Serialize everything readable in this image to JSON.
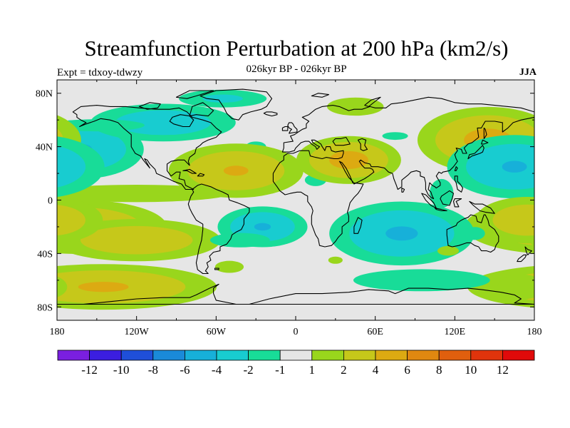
{
  "title": "Streamfunction Perturbation at 200 hPa (km2/s)",
  "subtitle": "026kyr BP - 026kyr BP",
  "left_label": "Expt = tdxoy-tdwzy",
  "right_label": "JJA",
  "lat_ticks": [
    {
      "label": "80N",
      "lat": 80
    },
    {
      "label": "40N",
      "lat": 40
    },
    {
      "label": "0",
      "lat": 0
    },
    {
      "label": "40S",
      "lat": -40
    },
    {
      "label": "80S",
      "lat": -80
    }
  ],
  "lon_ticks": [
    {
      "label": "180",
      "lon": -180
    },
    {
      "label": "120W",
      "lon": -120
    },
    {
      "label": "60W",
      "lon": -60
    },
    {
      "label": "0",
      "lon": 0
    },
    {
      "label": "60E",
      "lon": 60
    },
    {
      "label": "120E",
      "lon": 120
    },
    {
      "label": "180",
      "lon": 180
    }
  ],
  "colorbar": {
    "colors": [
      "#7a1fe0",
      "#3b1ee0",
      "#1f4fd9",
      "#1a8ad9",
      "#17b0d9",
      "#18ccd0",
      "#18dc98",
      "#e6e6e6",
      "#99d61c",
      "#c6c81a",
      "#dcaa12",
      "#e08810",
      "#e05f0e",
      "#e0340c",
      "#e00a0a"
    ],
    "labels": [
      "-12",
      "-10",
      "-8",
      "-6",
      "-4",
      "-2",
      "-1",
      "1",
      "2",
      "4",
      "6",
      "8",
      "10",
      "12"
    ]
  },
  "map": {
    "background_color": "#e6e6e6",
    "levels": [
      -1,
      -2,
      -4,
      1,
      2,
      4
    ],
    "anomalies": [
      {
        "lon": -162,
        "lat": 38,
        "amp": -4.2,
        "sx": 28,
        "sy": 13
      },
      {
        "lon": -100,
        "lat": 58,
        "amp": -3.4,
        "sx": 35,
        "sy": 9
      },
      {
        "lon": -55,
        "lat": 76,
        "amp": -2.4,
        "sx": 25,
        "sy": 5
      },
      {
        "lon": -150,
        "lat": 56,
        "amp": -1.5,
        "sx": 40,
        "sy": 5
      },
      {
        "lon": -75,
        "lat": 20,
        "amp": -1.6,
        "sx": 10,
        "sy": 6
      },
      {
        "lon": -30,
        "lat": 40,
        "amp": -1.6,
        "sx": 8,
        "sy": 4
      },
      {
        "lon": -45,
        "lat": 22,
        "amp": 4.2,
        "sx": 30,
        "sy": 12
      },
      {
        "lon": -120,
        "lat": 5,
        "amp": 1.8,
        "sx": 65,
        "sy": 6
      },
      {
        "lon": -165,
        "lat": -20,
        "amp": 4.2,
        "sx": 40,
        "sy": 12
      },
      {
        "lon": -120,
        "lat": -30,
        "amp": 3.5,
        "sx": 40,
        "sy": 10
      },
      {
        "lon": -145,
        "lat": -65,
        "amp": 4.3,
        "sx": 50,
        "sy": 10
      },
      {
        "lon": -25,
        "lat": -20,
        "amp": -4.2,
        "sx": 20,
        "sy": 9
      },
      {
        "lon": -42,
        "lat": -30,
        "amp": -1.5,
        "sx": 25,
        "sy": 6
      },
      {
        "lon": -50,
        "lat": -50,
        "amp": 1.5,
        "sx": 12,
        "sy": 5
      },
      {
        "lon": 15,
        "lat": 15,
        "amp": -1.5,
        "sx": 9,
        "sy": 5
      },
      {
        "lon": 40,
        "lat": 30,
        "amp": 5.0,
        "sx": 22,
        "sy": 10
      },
      {
        "lon": 45,
        "lat": 70,
        "amp": 1.6,
        "sx": 22,
        "sy": 7
      },
      {
        "lon": 75,
        "lat": 48,
        "amp": -1.6,
        "sx": 10,
        "sy": 3
      },
      {
        "lon": 80,
        "lat": -25,
        "amp": -4.3,
        "sx": 32,
        "sy": 14
      },
      {
        "lon": 95,
        "lat": -60,
        "amp": -1.7,
        "sx": 50,
        "sy": 8
      },
      {
        "lon": 110,
        "lat": 5,
        "amp": -1.5,
        "sx": 10,
        "sy": 12
      },
      {
        "lon": 145,
        "lat": 45,
        "amp": 4.8,
        "sx": 30,
        "sy": 14
      },
      {
        "lon": 165,
        "lat": 25,
        "amp": -4.2,
        "sx": 30,
        "sy": 14
      },
      {
        "lon": 175,
        "lat": -15,
        "amp": 3.5,
        "sx": 25,
        "sy": 11
      },
      {
        "lon": 135,
        "lat": -25,
        "amp": -1.6,
        "sx": 8,
        "sy": 5
      },
      {
        "lon": 115,
        "lat": -38,
        "amp": 1.5,
        "sx": 9,
        "sy": 4
      },
      {
        "lon": 30,
        "lat": -45,
        "amp": 1.5,
        "sx": 6,
        "sy": 3
      },
      {
        "lon": -35,
        "lat": -45,
        "amp": 1.0,
        "sx": 30,
        "sy": 6
      },
      {
        "lon": 170,
        "lat": -65,
        "amp": 2.0,
        "sx": 15,
        "sy": 8
      }
    ]
  }
}
